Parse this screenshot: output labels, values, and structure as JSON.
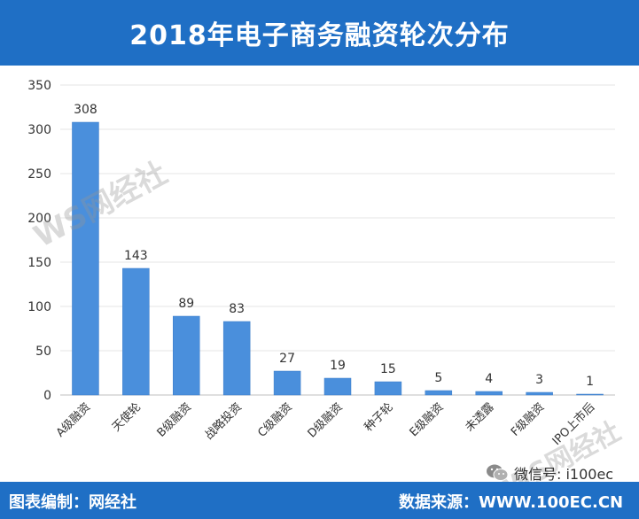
{
  "header": {
    "title": "2018年电子商务融资轮次分布"
  },
  "footer": {
    "left_text": "图表编制：网经社",
    "right_text": "数据来源：WWW.100EC.CN"
  },
  "wechat": {
    "icon": "wechat-icon",
    "text": "微信号: i100ec"
  },
  "watermark": {
    "text": "WS网经社",
    "subtext": "WWW.100EC.CN"
  },
  "colors": {
    "header_bg": "#1f6fc5",
    "bar": "#4a8fdc",
    "bar_dark": "#3d7cc8"
  },
  "chart_data": {
    "type": "bar",
    "title": "2018年电子商务融资轮次分布",
    "xlabel": "",
    "ylabel": "",
    "categories": [
      "A级融资",
      "天使轮",
      "B级融资",
      "战略投资",
      "C级融资",
      "D级融资",
      "种子轮",
      "E级融资",
      "未透露",
      "F级融资",
      "IPO上市后"
    ],
    "values": [
      308,
      143,
      89,
      83,
      27,
      19,
      15,
      5,
      4,
      3,
      1
    ],
    "ylim": [
      0,
      350
    ],
    "yticks": [
      0,
      50,
      100,
      150,
      200,
      250,
      300,
      350
    ],
    "grid": true,
    "legend": "none"
  }
}
